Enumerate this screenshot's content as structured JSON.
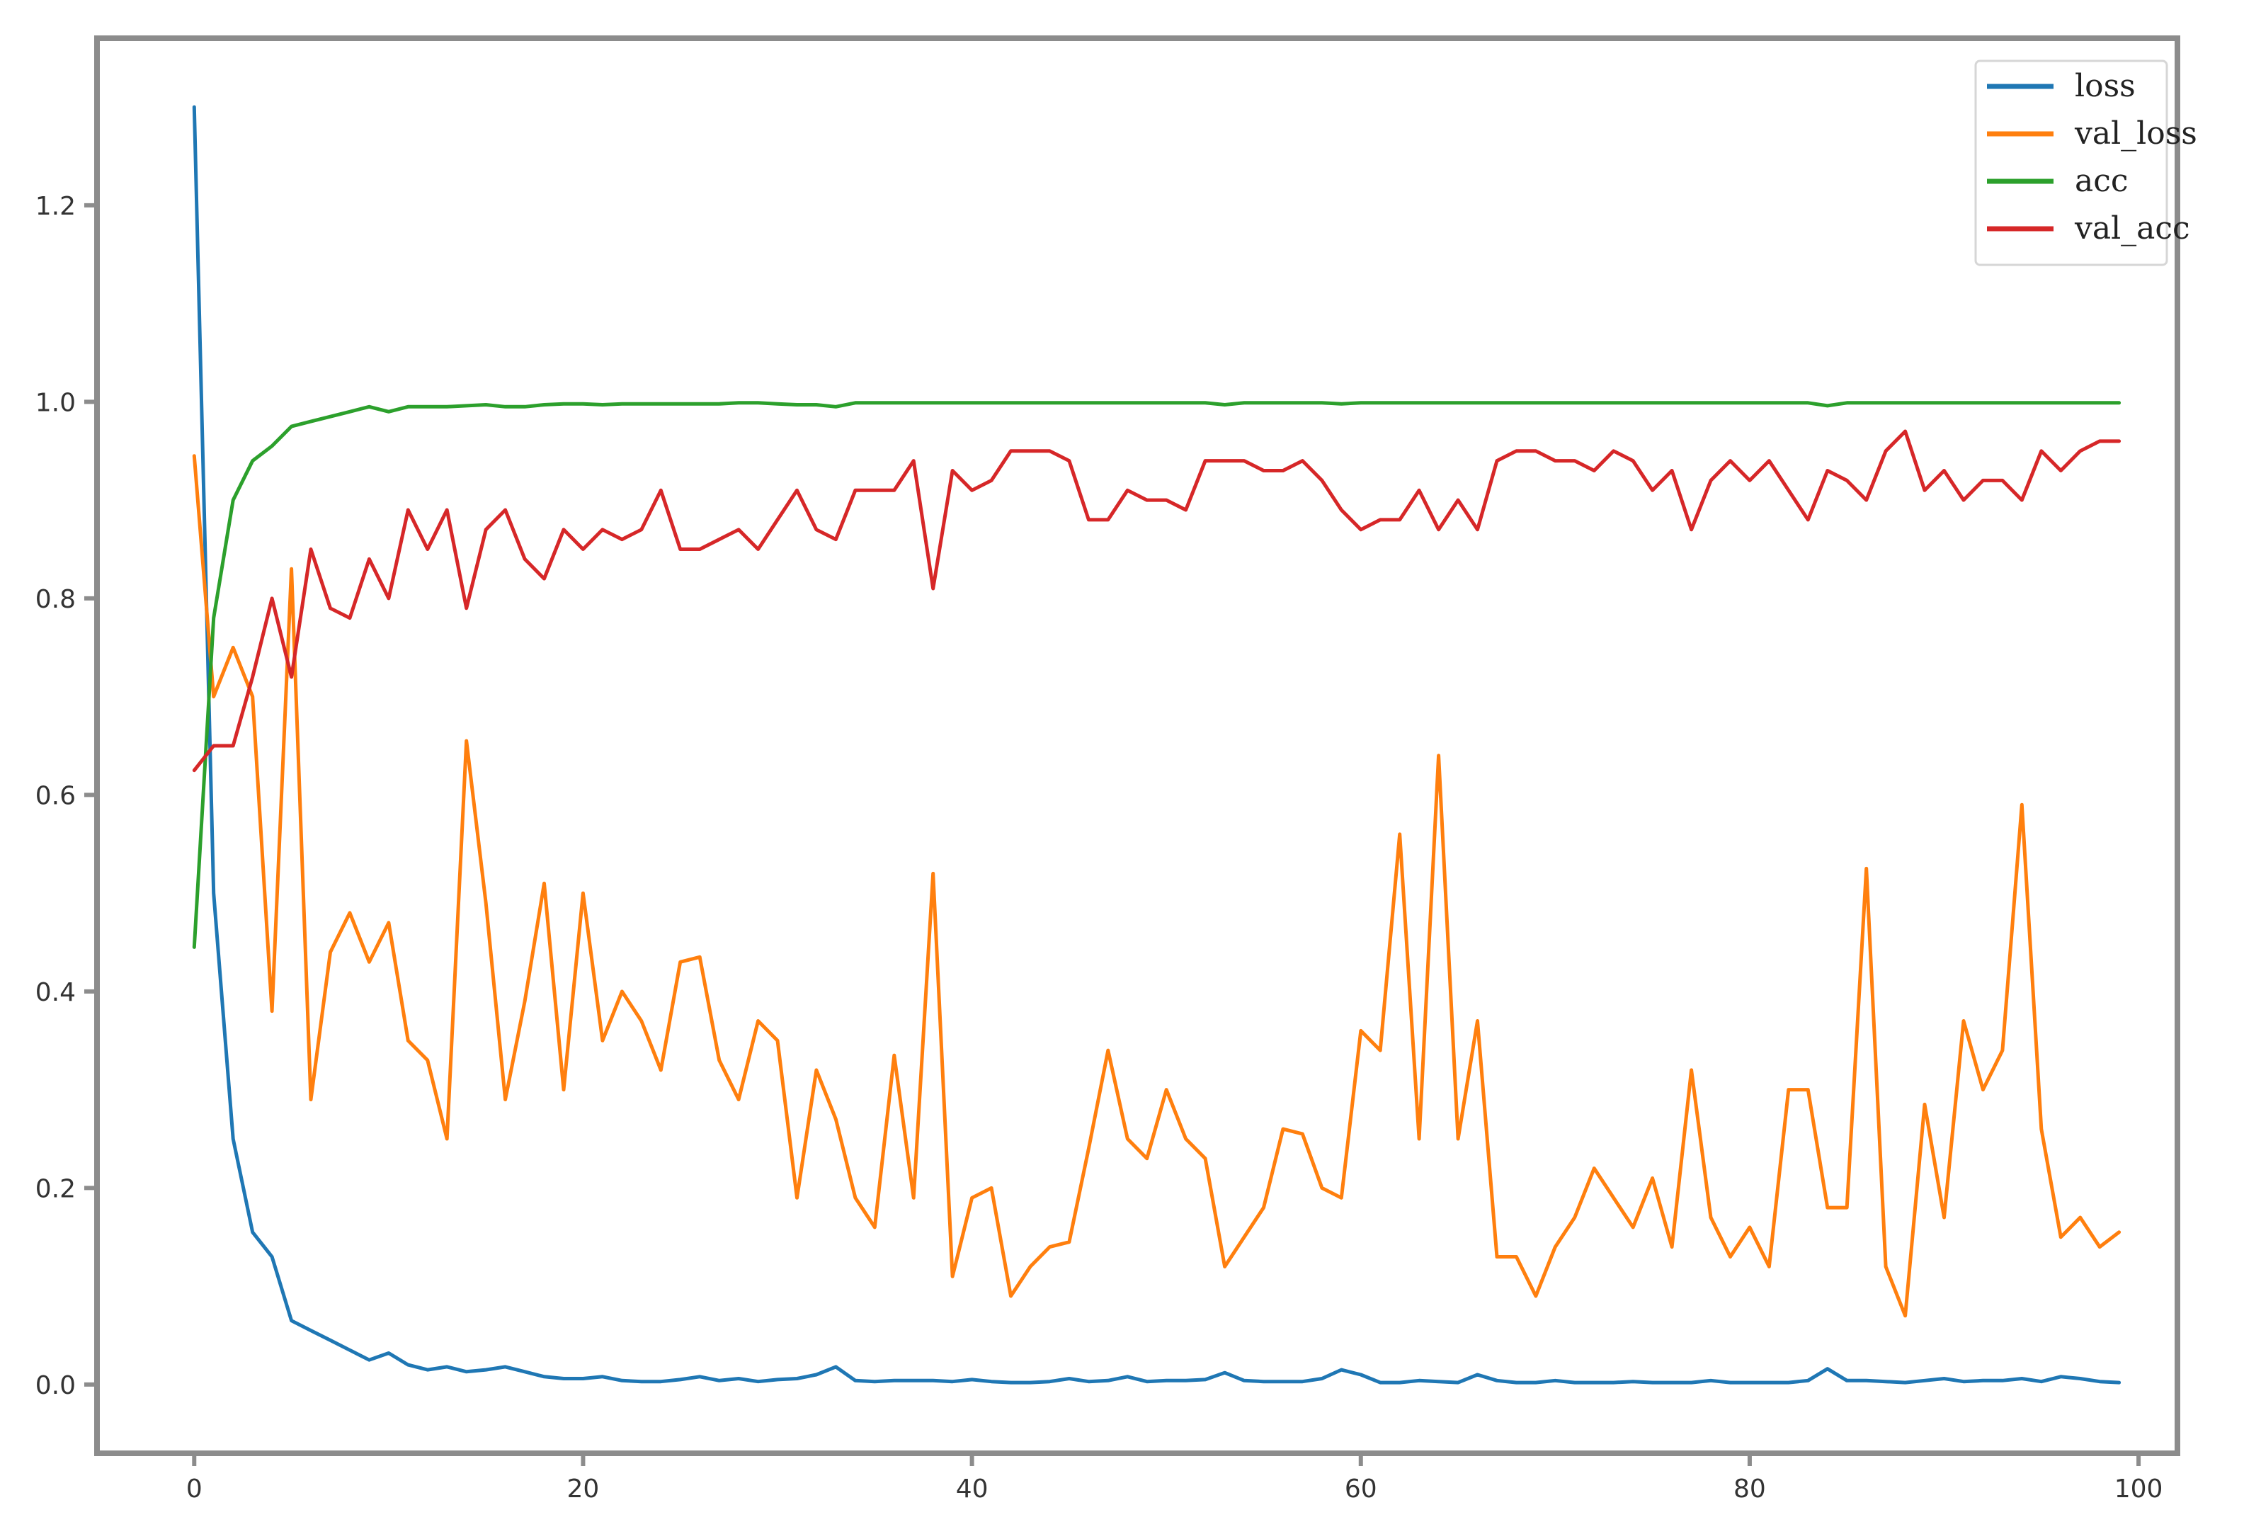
{
  "chart_data": {
    "type": "line",
    "title": "",
    "xlabel": "",
    "ylabel": "",
    "xlim": [
      -5,
      102
    ],
    "ylim": [
      -0.07,
      1.37
    ],
    "x_ticks": [
      0,
      20,
      40,
      60,
      80,
      100
    ],
    "y_ticks": [
      0.0,
      0.2,
      0.4,
      0.6,
      0.8,
      1.0,
      1.2
    ],
    "x_tick_labels": [
      "0",
      "20",
      "40",
      "60",
      "80",
      "100"
    ],
    "y_tick_labels": [
      "0.0",
      "0.2",
      "0.4",
      "0.6",
      "0.8",
      "1.0",
      "1.2"
    ],
    "grid": false,
    "legend_position": "top-right",
    "x": [
      0,
      1,
      2,
      3,
      4,
      5,
      6,
      7,
      8,
      9,
      10,
      11,
      12,
      13,
      14,
      15,
      16,
      17,
      18,
      19,
      20,
      21,
      22,
      23,
      24,
      25,
      26,
      27,
      28,
      29,
      30,
      31,
      32,
      33,
      34,
      35,
      36,
      37,
      38,
      39,
      40,
      41,
      42,
      43,
      44,
      45,
      46,
      47,
      48,
      49,
      50,
      51,
      52,
      53,
      54,
      55,
      56,
      57,
      58,
      59,
      60,
      61,
      62,
      63,
      64,
      65,
      66,
      67,
      68,
      69,
      70,
      71,
      72,
      73,
      74,
      75,
      76,
      77,
      78,
      79,
      80,
      81,
      82,
      83,
      84,
      85,
      86,
      87,
      88,
      89,
      90,
      91,
      92,
      93,
      94,
      95,
      96,
      97,
      98,
      99
    ],
    "series": [
      {
        "name": "loss",
        "color": "#1f77b4",
        "values": [
          1.3,
          0.5,
          0.25,
          0.155,
          0.13,
          0.065,
          0.055,
          0.045,
          0.035,
          0.025,
          0.032,
          0.02,
          0.015,
          0.018,
          0.013,
          0.015,
          0.018,
          0.013,
          0.008,
          0.006,
          0.006,
          0.008,
          0.004,
          0.003,
          0.003,
          0.005,
          0.008,
          0.004,
          0.006,
          0.003,
          0.005,
          0.006,
          0.01,
          0.018,
          0.004,
          0.003,
          0.004,
          0.004,
          0.004,
          0.003,
          0.005,
          0.003,
          0.002,
          0.002,
          0.003,
          0.006,
          0.003,
          0.004,
          0.008,
          0.003,
          0.004,
          0.004,
          0.005,
          0.012,
          0.004,
          0.003,
          0.003,
          0.003,
          0.006,
          0.015,
          0.01,
          0.002,
          0.002,
          0.004,
          0.003,
          0.002,
          0.01,
          0.004,
          0.002,
          0.002,
          0.004,
          0.002,
          0.002,
          0.002,
          0.003,
          0.002,
          0.002,
          0.002,
          0.004,
          0.002,
          0.002,
          0.002,
          0.002,
          0.004,
          0.016,
          0.004,
          0.004,
          0.003,
          0.002,
          0.004,
          0.006,
          0.003,
          0.004,
          0.004,
          0.006,
          0.003,
          0.008,
          0.006,
          0.003,
          0.002
        ]
      },
      {
        "name": "val_loss",
        "color": "#ff7f0e",
        "values": [
          0.945,
          0.7,
          0.75,
          0.7,
          0.38,
          0.83,
          0.29,
          0.44,
          0.48,
          0.43,
          0.47,
          0.35,
          0.33,
          0.25,
          0.655,
          0.49,
          0.29,
          0.39,
          0.51,
          0.3,
          0.5,
          0.35,
          0.4,
          0.37,
          0.32,
          0.43,
          0.435,
          0.33,
          0.29,
          0.37,
          0.35,
          0.19,
          0.32,
          0.27,
          0.19,
          0.16,
          0.335,
          0.19,
          0.52,
          0.11,
          0.19,
          0.2,
          0.09,
          0.12,
          0.14,
          0.145,
          0.24,
          0.34,
          0.25,
          0.23,
          0.3,
          0.25,
          0.23,
          0.12,
          0.15,
          0.18,
          0.26,
          0.255,
          0.2,
          0.19,
          0.36,
          0.34,
          0.56,
          0.25,
          0.64,
          0.25,
          0.37,
          0.13,
          0.13,
          0.09,
          0.14,
          0.17,
          0.22,
          0.19,
          0.16,
          0.21,
          0.14,
          0.32,
          0.17,
          0.13,
          0.16,
          0.12,
          0.3,
          0.3,
          0.18,
          0.18,
          0.525,
          0.12,
          0.07,
          0.285,
          0.17,
          0.37,
          0.3,
          0.34,
          0.59,
          0.26,
          0.15,
          0.17,
          0.14,
          0.155
        ]
      },
      {
        "name": "acc",
        "color": "#2ca02c",
        "values": [
          0.445,
          0.78,
          0.9,
          0.94,
          0.955,
          0.975,
          0.98,
          0.985,
          0.99,
          0.995,
          0.99,
          0.995,
          0.995,
          0.995,
          0.996,
          0.997,
          0.995,
          0.995,
          0.997,
          0.998,
          0.998,
          0.997,
          0.998,
          0.998,
          0.998,
          0.998,
          0.998,
          0.998,
          0.999,
          0.999,
          0.998,
          0.997,
          0.997,
          0.995,
          0.999,
          0.999,
          0.999,
          0.999,
          0.999,
          0.999,
          0.999,
          0.999,
          0.999,
          0.999,
          0.999,
          0.999,
          0.999,
          0.999,
          0.999,
          0.999,
          0.999,
          0.999,
          0.999,
          0.997,
          0.999,
          0.999,
          0.999,
          0.999,
          0.999,
          0.998,
          0.999,
          0.999,
          0.999,
          0.999,
          0.999,
          0.999,
          0.999,
          0.999,
          0.999,
          0.999,
          0.999,
          0.999,
          0.999,
          0.999,
          0.999,
          0.999,
          0.999,
          0.999,
          0.999,
          0.999,
          0.999,
          0.999,
          0.999,
          0.999,
          0.996,
          0.999,
          0.999,
          0.999,
          0.999,
          0.999,
          0.999,
          0.999,
          0.999,
          0.999,
          0.999,
          0.999,
          0.999,
          0.999,
          0.999,
          0.999
        ]
      },
      {
        "name": "val_acc",
        "color": "#d62728",
        "values": [
          0.625,
          0.65,
          0.65,
          0.72,
          0.8,
          0.72,
          0.85,
          0.79,
          0.78,
          0.84,
          0.8,
          0.89,
          0.85,
          0.89,
          0.79,
          0.87,
          0.89,
          0.84,
          0.82,
          0.87,
          0.85,
          0.87,
          0.86,
          0.87,
          0.91,
          0.85,
          0.85,
          0.86,
          0.87,
          0.85,
          0.88,
          0.91,
          0.87,
          0.86,
          0.91,
          0.91,
          0.91,
          0.94,
          0.81,
          0.93,
          0.91,
          0.92,
          0.95,
          0.95,
          0.95,
          0.94,
          0.88,
          0.88,
          0.91,
          0.9,
          0.9,
          0.89,
          0.94,
          0.94,
          0.94,
          0.93,
          0.93,
          0.94,
          0.92,
          0.89,
          0.87,
          0.88,
          0.88,
          0.91,
          0.87,
          0.9,
          0.87,
          0.94,
          0.95,
          0.95,
          0.94,
          0.94,
          0.93,
          0.95,
          0.94,
          0.91,
          0.93,
          0.87,
          0.92,
          0.94,
          0.92,
          0.94,
          0.91,
          0.88,
          0.93,
          0.92,
          0.9,
          0.95,
          0.97,
          0.91,
          0.93,
          0.9,
          0.92,
          0.92,
          0.9,
          0.95,
          0.93,
          0.95,
          0.96,
          0.96
        ]
      }
    ]
  }
}
